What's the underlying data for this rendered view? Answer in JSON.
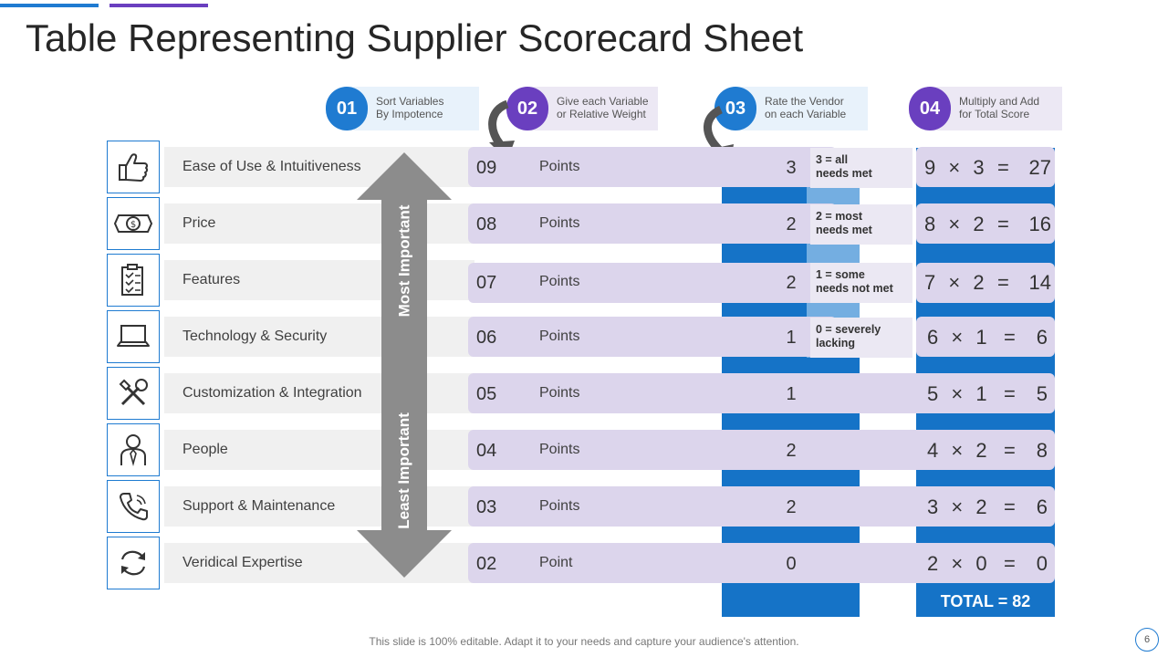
{
  "title": "Table Representing Supplier Scorecard Sheet",
  "steps": [
    {
      "number": "01",
      "line1": "Sort Variables",
      "line2": "By Impotence",
      "color": "#1f7bd1"
    },
    {
      "number": "02",
      "line1": "Give each Variable",
      "line2": "or Relative Weight",
      "color": "#6a3fbf"
    },
    {
      "number": "03",
      "line1": "Rate the Vendor",
      "line2": "on each Variable",
      "color": "#1f7bd1"
    },
    {
      "number": "04",
      "line1": "Multiply and Add",
      "line2": "for Total Score",
      "color": "#6a3fbf"
    }
  ],
  "rows": [
    {
      "icon": "thumbs-up-icon",
      "label": "Ease of Use & Intuitiveness",
      "weight": "09",
      "unit": "Points",
      "rating": "3",
      "calc": {
        "a": "9",
        "b": "3",
        "result": "27"
      }
    },
    {
      "icon": "money-icon",
      "label": "Price",
      "weight": "08",
      "unit": "Points",
      "rating": "2",
      "calc": {
        "a": "8",
        "b": "2",
        "result": "16"
      }
    },
    {
      "icon": "checklist-icon",
      "label": "Features",
      "weight": "07",
      "unit": "Points",
      "rating": "2",
      "calc": {
        "a": "7",
        "b": "2",
        "result": "14"
      }
    },
    {
      "icon": "laptop-icon",
      "label": "Technology  & Security",
      "weight": "06",
      "unit": "Points",
      "rating": "1",
      "calc": {
        "a": "6",
        "b": "1",
        "result": "6"
      }
    },
    {
      "icon": "tools-icon",
      "label": "Customization & Integration",
      "weight": "05",
      "unit": "Points",
      "rating": "1",
      "calc": {
        "a": "5",
        "b": "1",
        "result": "5"
      }
    },
    {
      "icon": "person-icon",
      "label": "People",
      "weight": "04",
      "unit": "Points",
      "rating": "2",
      "calc": {
        "a": "4",
        "b": "2",
        "result": "8"
      }
    },
    {
      "icon": "phone-icon",
      "label": "Support & Maintenance",
      "weight": "03",
      "unit": "Points",
      "rating": "2",
      "calc": {
        "a": "3",
        "b": "2",
        "result": "6"
      }
    },
    {
      "icon": "sync-icon",
      "label": "Veridical Expertise",
      "weight": "02",
      "unit": "Point",
      "rating": "0",
      "calc": {
        "a": "2",
        "b": "0",
        "result": "0"
      }
    }
  ],
  "operators": {
    "multiply": "×",
    "equals": "="
  },
  "legend": [
    {
      "line1": "3 = all",
      "line2": "needs met"
    },
    {
      "line1": "2 = most",
      "line2": "needs met"
    },
    {
      "line1": "1 = some",
      "line2": "needs not met"
    },
    {
      "line1": "0 = severely",
      "line2": "lacking"
    }
  ],
  "arrow": {
    "top_label": "Most Important",
    "bottom_label": "Least Important"
  },
  "total": "TOTAL = 82",
  "footer": "This slide is 100% editable. Adapt it to your needs and capture your audience's attention.",
  "page_number": "6",
  "colors": {
    "blue": "#1573c7",
    "light_blue": "#74aee1",
    "purple": "#6a3fbf",
    "pill": "#dcd5ec",
    "gray": "#8c8c8c"
  }
}
